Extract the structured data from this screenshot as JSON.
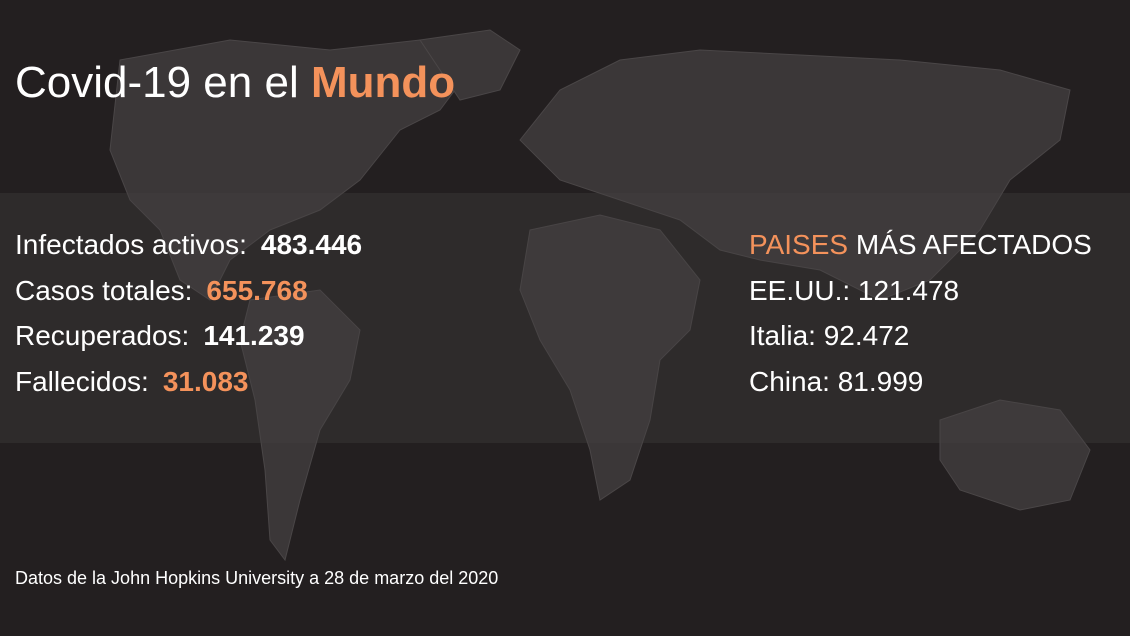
{
  "header": {
    "title": "Covid-19 en el ",
    "highlight": "Mundo"
  },
  "stats": [
    {
      "label": "Infectados activos:",
      "value": "483.446"
    },
    {
      "label": "Casos totales:",
      "value": "655.768"
    },
    {
      "label": "Recuperados:",
      "value": "141.239"
    },
    {
      "label": "Fallecidos:",
      "value": "31.083"
    }
  ],
  "countries": {
    "heading_highlight": "PAISES",
    "heading": "MÁS AFECTADOS",
    "items": [
      "EE.UU.: 121.478",
      "Italia: 92.472",
      "China: 81.999"
    ]
  },
  "footer": {
    "source": "Datos de la John Hopkins University a 28 de marzo del 2020"
  }
}
